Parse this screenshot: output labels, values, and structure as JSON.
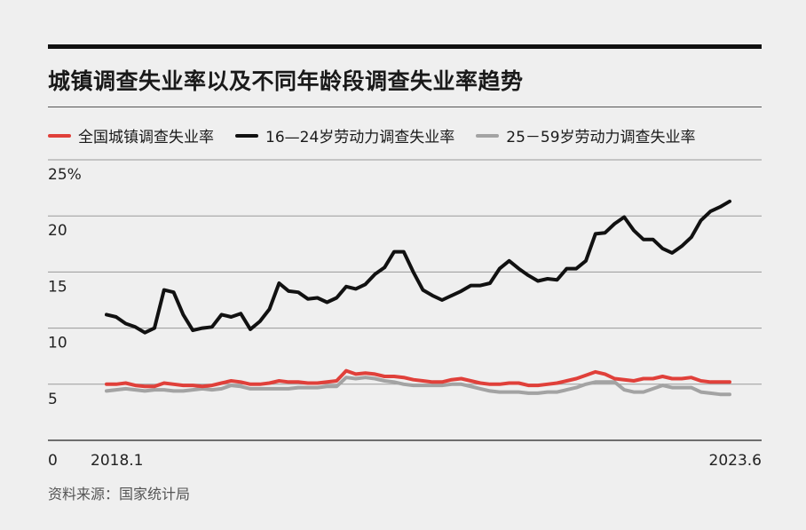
{
  "title": "城镇调查失业率以及不同年龄段调查失业率趋势",
  "source": "资料来源：国家统计局",
  "chart_data": {
    "type": "line",
    "title": "城镇调查失业率以及不同年龄段调查失业率趋势",
    "ylim": [
      0,
      25
    ],
    "yticks": [
      0,
      5,
      10,
      15,
      20,
      25
    ],
    "ytick_labels": [
      "0",
      "5",
      "10",
      "15",
      "20",
      "25%"
    ],
    "x_labels": [
      "2018.1",
      "2023.6"
    ],
    "grid": true,
    "legend_position": "top",
    "series": [
      {
        "name": "全国城镇调查失业率",
        "color": "#e0403a",
        "values": [
          5.0,
          5.0,
          5.1,
          4.9,
          4.8,
          4.8,
          5.1,
          5.0,
          4.9,
          4.9,
          4.8,
          4.9,
          5.1,
          5.3,
          5.2,
          5.0,
          5.0,
          5.1,
          5.3,
          5.2,
          5.2,
          5.1,
          5.1,
          5.2,
          5.3,
          6.2,
          5.9,
          6.0,
          5.9,
          5.7,
          5.7,
          5.6,
          5.4,
          5.3,
          5.2,
          5.2,
          5.4,
          5.5,
          5.3,
          5.1,
          5.0,
          5.0,
          5.1,
          5.1,
          4.9,
          4.9,
          5.0,
          5.1,
          5.3,
          5.5,
          5.8,
          6.1,
          5.9,
          5.5,
          5.4,
          5.3,
          5.5,
          5.5,
          5.7,
          5.5,
          5.5,
          5.6,
          5.3,
          5.2,
          5.2,
          5.2
        ]
      },
      {
        "name": "16—24岁劳动力调查失业率",
        "color": "#111111",
        "values": [
          11.2,
          11.0,
          10.4,
          10.1,
          9.6,
          10.0,
          13.4,
          13.2,
          11.2,
          9.8,
          10.0,
          10.1,
          11.2,
          11.0,
          11.3,
          9.9,
          10.6,
          11.7,
          14.0,
          13.3,
          13.2,
          12.6,
          12.7,
          12.3,
          12.7,
          13.7,
          13.5,
          13.9,
          14.8,
          15.4,
          16.8,
          16.8,
          15.0,
          13.4,
          12.9,
          12.5,
          12.9,
          13.3,
          13.8,
          13.8,
          14.0,
          15.3,
          16.0,
          15.3,
          14.7,
          14.2,
          14.4,
          14.3,
          15.3,
          15.3,
          16.0,
          18.4,
          18.5,
          19.3,
          19.9,
          18.7,
          17.9,
          17.9,
          17.1,
          16.7,
          17.3,
          18.1,
          19.6,
          20.4,
          20.8,
          21.3
        ]
      },
      {
        "name": "25－59岁劳动力调查失业率",
        "color": "#a3a3a3",
        "values": [
          4.4,
          4.5,
          4.6,
          4.5,
          4.4,
          4.5,
          4.5,
          4.4,
          4.4,
          4.5,
          4.6,
          4.5,
          4.6,
          4.9,
          4.8,
          4.6,
          4.6,
          4.6,
          4.6,
          4.6,
          4.7,
          4.7,
          4.7,
          4.8,
          4.8,
          5.6,
          5.5,
          5.6,
          5.5,
          5.3,
          5.2,
          5.0,
          4.9,
          4.9,
          4.9,
          4.9,
          5.0,
          5.0,
          4.8,
          4.6,
          4.4,
          4.3,
          4.3,
          4.3,
          4.2,
          4.2,
          4.3,
          4.3,
          4.5,
          4.7,
          5.0,
          5.2,
          5.2,
          5.2,
          4.5,
          4.3,
          4.3,
          4.6,
          4.9,
          4.7,
          4.7,
          4.7,
          4.3,
          4.2,
          4.1,
          4.1
        ]
      }
    ]
  }
}
